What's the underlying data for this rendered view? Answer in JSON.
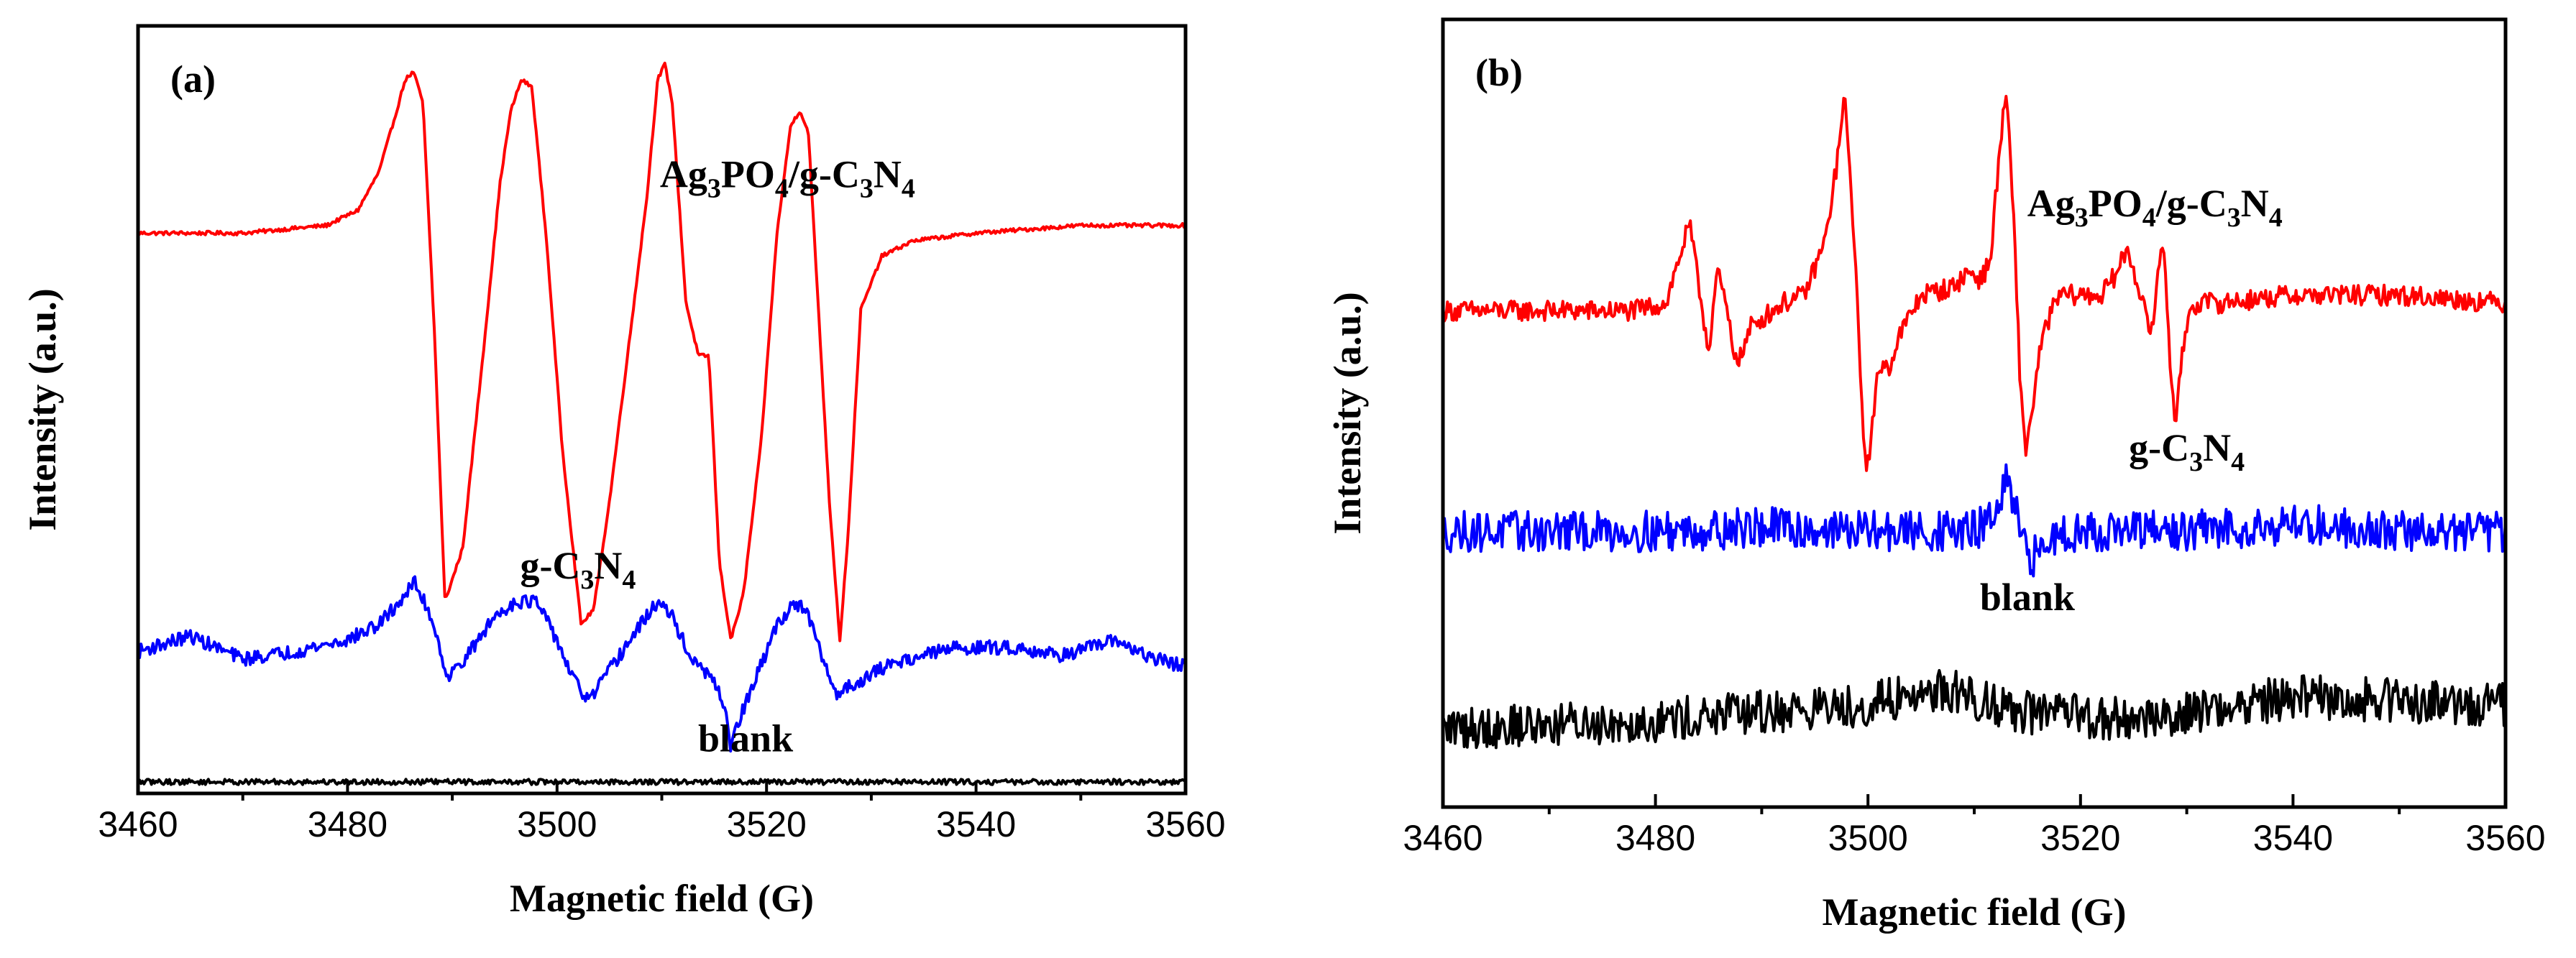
{
  "chart_data": [
    {
      "type": "line",
      "panel_label": "(a)",
      "xlabel": "Magnetic field (G)",
      "ylabel": "Intensity (a.u.)",
      "xlim": [
        3460,
        3560
      ],
      "ylim": [
        0,
        100
      ],
      "x_ticks": [
        3460,
        3480,
        3500,
        3520,
        3540,
        3560
      ],
      "x_minor_ticks": [
        3470,
        3490,
        3510,
        3530,
        3550
      ],
      "series": [
        {
          "name": "Ag3PO4/g-C3N4",
          "label_parts": [
            [
              "Ag",
              ""
            ],
            [
              "3",
              "sub"
            ],
            [
              "PO",
              ""
            ],
            [
              "4",
              "sub"
            ],
            [
              "/g-C",
              ""
            ],
            [
              "3",
              "sub"
            ],
            [
              "N",
              ""
            ],
            [
              "4",
              "sub"
            ]
          ],
          "color": "#ff0000",
          "label_x": 3522,
          "label_y": 79,
          "x": [
            3460,
            3470,
            3478,
            3481,
            3483,
            3484.5,
            3485.5,
            3486.3,
            3487.2,
            3488.3,
            3489.3,
            3491,
            3493,
            3494.6,
            3495.6,
            3496.6,
            3497.6,
            3499,
            3500.5,
            3502.3,
            3503.5,
            3505,
            3507,
            3508.6,
            3509.6,
            3510.3,
            3511,
            3512.3,
            3513.5,
            3514.5,
            3515.5,
            3516.6,
            3517.8,
            3519.5,
            3521,
            3522.3,
            3523.2,
            3524,
            3525,
            3526,
            3527,
            3527.8,
            3529,
            3531,
            3534,
            3540,
            3550,
            3560
          ],
          "y": [
            73,
            73,
            74,
            76,
            81,
            88,
            93,
            94,
            90,
            60,
            25,
            32,
            58,
            80,
            89,
            93,
            92,
            72,
            45,
            22,
            24,
            38,
            60,
            78,
            93,
            95,
            90,
            64,
            57,
            57,
            30,
            20,
            26,
            46,
            73,
            87,
            89,
            86,
            62,
            38,
            20,
            34,
            63,
            70,
            72,
            73,
            74,
            74
          ]
        },
        {
          "name": "g-C3N4",
          "label_parts": [
            [
              "g-C",
              ""
            ],
            [
              "3",
              "sub"
            ],
            [
              "N",
              ""
            ],
            [
              "4",
              "sub"
            ]
          ],
          "color": "#0000ff",
          "label_x": 3502,
          "label_y": 28,
          "x": [
            3460,
            3465,
            3470,
            3475,
            3480,
            3483,
            3485,
            3486.4,
            3488,
            3489.6,
            3492,
            3494,
            3496,
            3498,
            3500,
            3501.5,
            3503,
            3505,
            3508,
            3509.6,
            3511,
            3513,
            3514.5,
            3516,
            3516.6,
            3517.5,
            3519,
            3521,
            3522.8,
            3524,
            3525.5,
            3526.6,
            3528,
            3532,
            3538,
            3544,
            3548,
            3551,
            3553.5,
            3556,
            3560
          ],
          "y": [
            18.5,
            20.5,
            17.5,
            18.5,
            20,
            22,
            25,
            27.5,
            23,
            15,
            19,
            23,
            25,
            25,
            20,
            15,
            12,
            16,
            22,
            25,
            23,
            17,
            15.5,
            11.5,
            6,
            10,
            15,
            22,
            25,
            23,
            17,
            13,
            14,
            17,
            19,
            19,
            18,
            19,
            20,
            18,
            16.5
          ]
        },
        {
          "name": "blank",
          "label_parts": [
            [
              "blank",
              ""
            ]
          ],
          "color": "#000000",
          "label_x": 3518,
          "label_y": 5.5,
          "x": [
            3460,
            3560
          ],
          "y": [
            1.5,
            1.5
          ]
        }
      ]
    },
    {
      "type": "line",
      "panel_label": "(b)",
      "xlabel": "Magnetic field (G)",
      "ylabel": "Intensity (a.u.)",
      "xlim": [
        3460,
        3560
      ],
      "ylim": [
        0,
        100
      ],
      "x_ticks": [
        3460,
        3480,
        3500,
        3520,
        3540,
        3560
      ],
      "x_minor_ticks": [
        3470,
        3490,
        3510,
        3530,
        3550
      ],
      "series": [
        {
          "name": "Ag3PO4/g-C3N4",
          "label_parts": [
            [
              "Ag",
              ""
            ],
            [
              "3",
              "sub"
            ],
            [
              "PO",
              ""
            ],
            [
              "4",
              "sub"
            ],
            [
              "/g-C",
              ""
            ],
            [
              "3",
              "sub"
            ],
            [
              "N",
              ""
            ],
            [
              "4",
              "sub"
            ]
          ],
          "color": "#ff0000",
          "label_x": 3527,
          "label_y": 75,
          "x": [
            3460,
            3470,
            3478,
            3481,
            3482.3,
            3483.2,
            3484.1,
            3485,
            3485.8,
            3486.6,
            3487.3,
            3488,
            3489,
            3492,
            3494,
            3496,
            3497,
            3497.8,
            3498.5,
            3499.2,
            3499.8,
            3500.5,
            3501,
            3502,
            3503,
            3505,
            3508,
            3509.5,
            3510.5,
            3511.5,
            3512.3,
            3513,
            3513.7,
            3514.3,
            3514.8,
            3515.4,
            3516.2,
            3517,
            3518,
            3520,
            3522,
            3523.5,
            3524.4,
            3525.3,
            3526,
            3526.8,
            3527.3,
            3527.9,
            3528.4,
            3529,
            3529.5,
            3530.2,
            3531,
            3533,
            3540,
            3550,
            3560
          ],
          "y": [
            63,
            63,
            63,
            64,
            70,
            74,
            66,
            58,
            68,
            64,
            58,
            57,
            61,
            64,
            65,
            72,
            81,
            90,
            77,
            58,
            42,
            49,
            56,
            56,
            60,
            65,
            66,
            68,
            67,
            69,
            82,
            91,
            75,
            55,
            45,
            50,
            58,
            62,
            65,
            65,
            65,
            68,
            71,
            67,
            63,
            60,
            69,
            71,
            57,
            48,
            57,
            63,
            64,
            64,
            65,
            65,
            64
          ]
        },
        {
          "name": "g-C3N4",
          "label_parts": [
            [
              "g-C",
              ""
            ],
            [
              "3",
              "sub"
            ],
            [
              "N",
              ""
            ],
            [
              "4",
              "sub"
            ]
          ],
          "color": "#0000ff",
          "label_x": 3530,
          "label_y": 44,
          "x": [
            3460,
            3470,
            3480,
            3490,
            3500,
            3510,
            3512,
            3513,
            3514,
            3515,
            3518,
            3530,
            3540,
            3550,
            3560
          ],
          "y": [
            35,
            35,
            35,
            35.5,
            35,
            35,
            37,
            41,
            37,
            31,
            35,
            35,
            36,
            35,
            35
          ]
        },
        {
          "name": "blank",
          "label_parts": [
            [
              "blank",
              ""
            ]
          ],
          "color": "#000000",
          "label_x": 3515,
          "label_y": 25,
          "x": [
            3460,
            3480,
            3490,
            3500,
            3507,
            3515,
            3525,
            3540,
            3560
          ],
          "y": [
            10,
            11,
            12,
            13,
            15,
            12,
            11,
            14,
            13
          ]
        }
      ]
    }
  ]
}
